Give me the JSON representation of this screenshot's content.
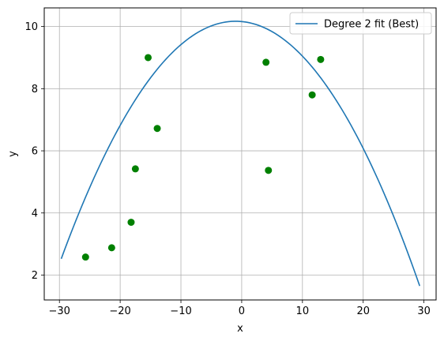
{
  "chart_data": {
    "type": "scatter",
    "title": "",
    "xlabel": "x",
    "ylabel": "y",
    "xlim": [
      -32.5,
      32.0
    ],
    "ylim": [
      1.2,
      10.6
    ],
    "xticks": [
      -30,
      -20,
      -10,
      0,
      10,
      20,
      30
    ],
    "yticks": [
      2,
      4,
      6,
      8,
      10
    ],
    "grid": true,
    "legend": {
      "placement": "top-right",
      "entries": [
        "Degree 2 fit (Best)"
      ]
    },
    "points": {
      "color": "#008000",
      "x": [
        -25.7,
        -21.4,
        -18.2,
        -17.5,
        -15.4,
        -13.9,
        4.0,
        4.4,
        11.6,
        13.0
      ],
      "y": [
        2.58,
        2.88,
        3.7,
        5.42,
        9.0,
        6.72,
        8.85,
        5.37,
        7.8,
        8.94
      ]
    },
    "fit_line": {
      "name": "Degree 2 fit (Best)",
      "color": "#1f77b4",
      "degree": 2,
      "x_range": [
        -29.7,
        29.3
      ],
      "vertex_x": -1.0,
      "vertex_y": 10.17,
      "a": -0.00928
    }
  }
}
